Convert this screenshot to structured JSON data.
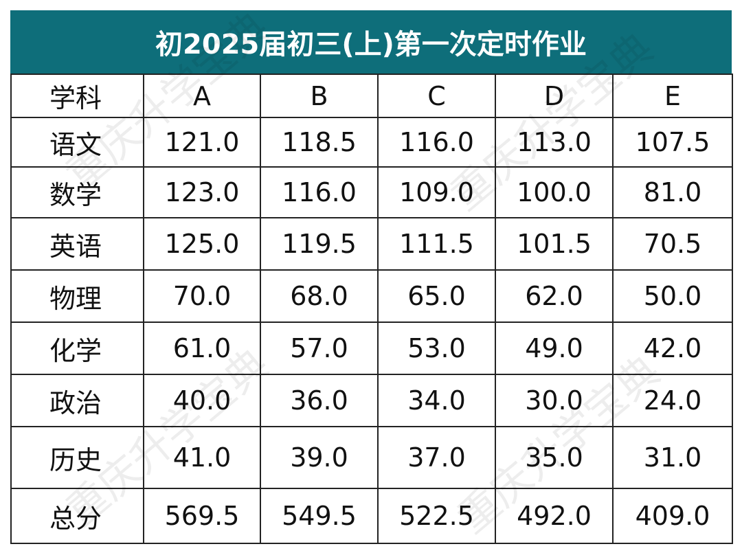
{
  "title": "初2025届初三(上)第一次定时作业",
  "watermark": "重庆升学宝典",
  "table": {
    "header": [
      "学科",
      "A",
      "B",
      "C",
      "D",
      "E"
    ],
    "rows": [
      [
        "语文",
        "121.0",
        "118.5",
        "116.0",
        "113.0",
        "107.5"
      ],
      [
        "数学",
        "123.0",
        "116.0",
        "109.0",
        "100.0",
        "81.0"
      ],
      [
        "英语",
        "125.0",
        "119.5",
        "111.5",
        "101.5",
        "70.5"
      ],
      [
        "物理",
        "70.0",
        "68.0",
        "65.0",
        "62.0",
        "50.0"
      ],
      [
        "化学",
        "61.0",
        "57.0",
        "53.0",
        "49.0",
        "42.0"
      ],
      [
        "政治",
        "40.0",
        "36.0",
        "34.0",
        "30.0",
        "24.0"
      ],
      [
        "历史",
        "41.0",
        "39.0",
        "37.0",
        "35.0",
        "31.0"
      ],
      [
        "总分",
        "569.5",
        "549.5",
        "522.5",
        "492.0",
        "409.0"
      ]
    ]
  }
}
